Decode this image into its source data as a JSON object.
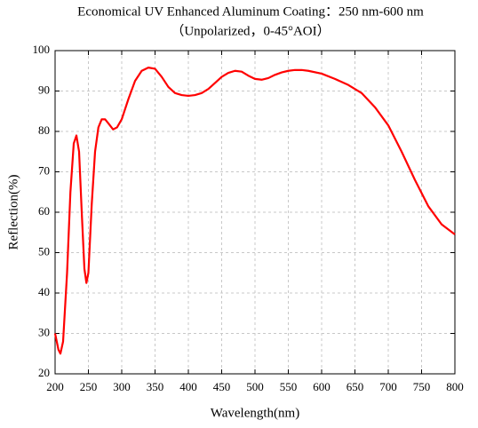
{
  "chart_data": {
    "type": "line",
    "title": "Economical UV Enhanced Aluminum Coating：250 nm-600 nm",
    "subtitle": "（Unpolarized，0-45°AOI）",
    "x_label": "Wavelength(nm)",
    "y_label": "Reflection(%)",
    "x": [
      200,
      205,
      208,
      212,
      218,
      223,
      228,
      232,
      236,
      240,
      244,
      247,
      250,
      255,
      260,
      265,
      270,
      275,
      280,
      287,
      293,
      300,
      310,
      320,
      330,
      340,
      350,
      360,
      370,
      380,
      390,
      400,
      410,
      420,
      430,
      440,
      450,
      460,
      470,
      480,
      490,
      500,
      510,
      520,
      530,
      540,
      550,
      560,
      570,
      580,
      600,
      620,
      640,
      660,
      680,
      700,
      720,
      740,
      760,
      780,
      800
    ],
    "series": [
      {
        "name": "Reflection",
        "color": "#ff0000",
        "values": [
          30,
          26,
          25,
          28,
          45,
          65,
          77,
          79,
          75,
          60,
          46,
          42.5,
          45,
          62,
          75,
          81,
          83,
          83,
          82,
          80.5,
          81,
          83,
          88,
          92.5,
          95,
          95.8,
          95.5,
          93.5,
          91,
          89.5,
          89,
          88.8,
          89,
          89.5,
          90.5,
          92,
          93.5,
          94.5,
          95,
          94.8,
          93.8,
          93,
          92.8,
          93.2,
          94,
          94.6,
          95,
          95.2,
          95.2,
          95,
          94.3,
          93,
          91.5,
          89.5,
          86,
          81.5,
          75,
          68,
          61.5,
          57,
          54.5
        ]
      }
    ],
    "xlim": [
      200,
      800
    ],
    "ylim": [
      20,
      100
    ],
    "xticks": [
      200,
      250,
      300,
      350,
      400,
      450,
      500,
      550,
      600,
      650,
      700,
      750,
      800
    ],
    "yticks": [
      20,
      30,
      40,
      50,
      60,
      70,
      80,
      90,
      100
    ],
    "grid": true
  }
}
